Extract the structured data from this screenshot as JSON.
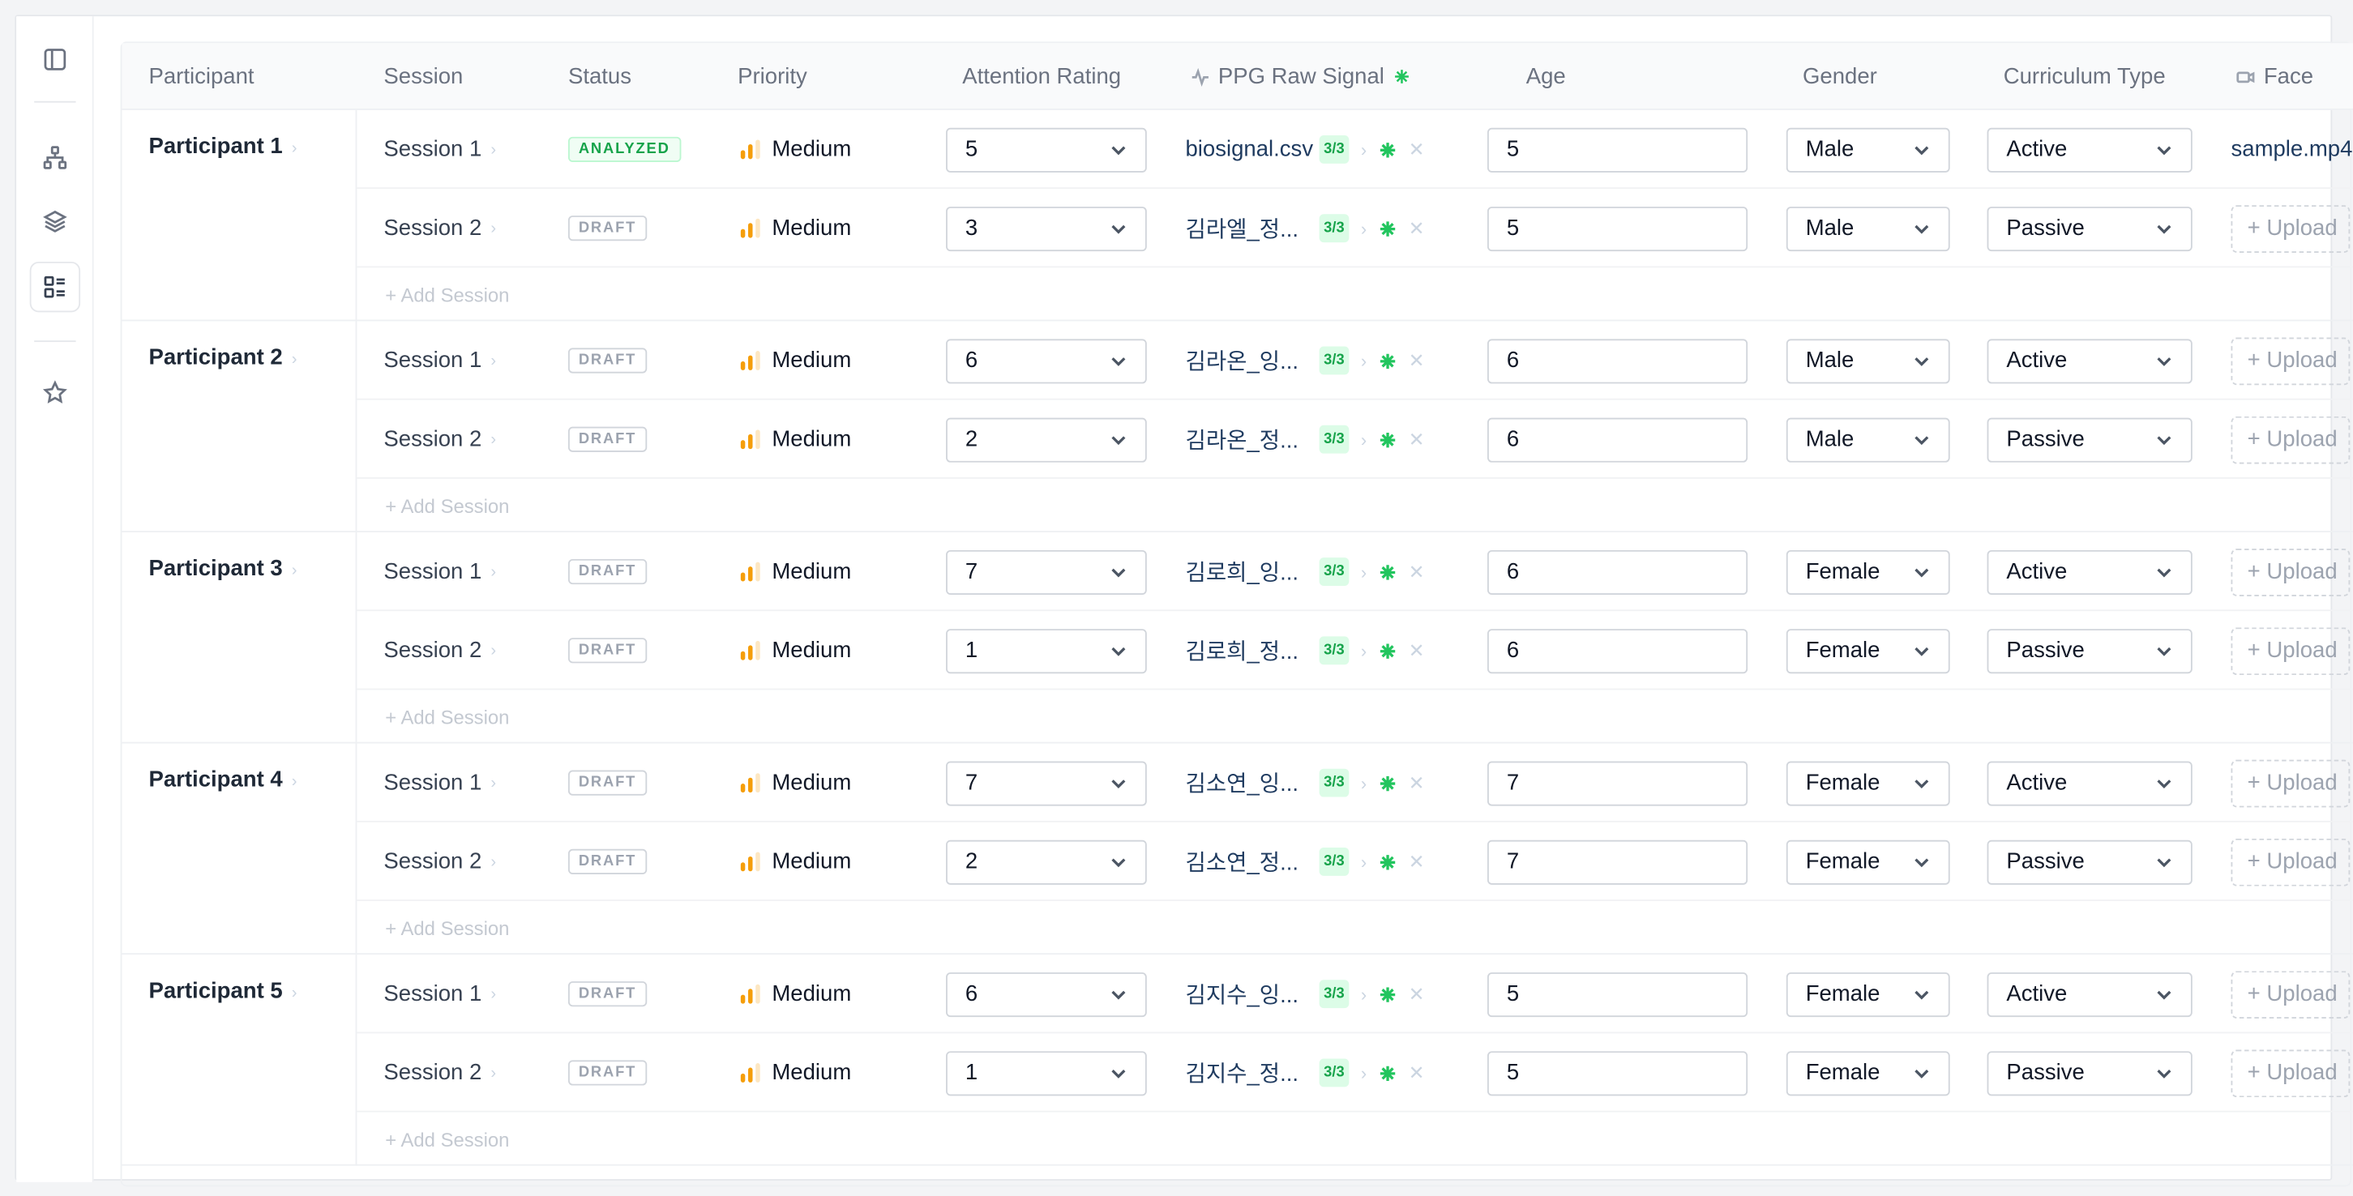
{
  "columns": {
    "participant": "Participant",
    "session": "Session",
    "status": "Status",
    "priority": "Priority",
    "attention": "Attention Rating",
    "ppg": "PPG Raw Signal",
    "age": "Age",
    "gender": "Gender",
    "curriculum": "Curriculum Type",
    "face": "Face"
  },
  "add_session_label": "+ Add Session",
  "upload_label": "+ Upload",
  "participants": [
    {
      "name": "Participant 1",
      "sessions": [
        {
          "session": "Session 1",
          "status": "ANALYZED",
          "priority": "Medium",
          "attention": "5",
          "ppg_file": "biosignal.csv",
          "ppg_count": "3/3",
          "age": "5",
          "gender": "Male",
          "curriculum": "Active",
          "face": "sample.mp4"
        },
        {
          "session": "Session 2",
          "status": "DRAFT",
          "priority": "Medium",
          "attention": "3",
          "ppg_file": "김라엘_정...",
          "ppg_count": "3/3",
          "age": "5",
          "gender": "Male",
          "curriculum": "Passive",
          "face": ""
        }
      ]
    },
    {
      "name": "Participant 2",
      "sessions": [
        {
          "session": "Session 1",
          "status": "DRAFT",
          "priority": "Medium",
          "attention": "6",
          "ppg_file": "김라온_잉...",
          "ppg_count": "3/3",
          "age": "6",
          "gender": "Male",
          "curriculum": "Active",
          "face": ""
        },
        {
          "session": "Session 2",
          "status": "DRAFT",
          "priority": "Medium",
          "attention": "2",
          "ppg_file": "김라온_정...",
          "ppg_count": "3/3",
          "age": "6",
          "gender": "Male",
          "curriculum": "Passive",
          "face": ""
        }
      ]
    },
    {
      "name": "Participant 3",
      "sessions": [
        {
          "session": "Session 1",
          "status": "DRAFT",
          "priority": "Medium",
          "attention": "7",
          "ppg_file": "김로희_잉...",
          "ppg_count": "3/3",
          "age": "6",
          "gender": "Female",
          "curriculum": "Active",
          "face": ""
        },
        {
          "session": "Session 2",
          "status": "DRAFT",
          "priority": "Medium",
          "attention": "1",
          "ppg_file": "김로희_정...",
          "ppg_count": "3/3",
          "age": "6",
          "gender": "Female",
          "curriculum": "Passive",
          "face": ""
        }
      ]
    },
    {
      "name": "Participant 4",
      "sessions": [
        {
          "session": "Session 1",
          "status": "DRAFT",
          "priority": "Medium",
          "attention": "7",
          "ppg_file": "김소연_잉...",
          "ppg_count": "3/3",
          "age": "7",
          "gender": "Female",
          "curriculum": "Active",
          "face": ""
        },
        {
          "session": "Session 2",
          "status": "DRAFT",
          "priority": "Medium",
          "attention": "2",
          "ppg_file": "김소연_정...",
          "ppg_count": "3/3",
          "age": "7",
          "gender": "Female",
          "curriculum": "Passive",
          "face": ""
        }
      ]
    },
    {
      "name": "Participant 5",
      "sessions": [
        {
          "session": "Session 1",
          "status": "DRAFT",
          "priority": "Medium",
          "attention": "6",
          "ppg_file": "김지수_잉...",
          "ppg_count": "3/3",
          "age": "5",
          "gender": "Female",
          "curriculum": "Active",
          "face": ""
        },
        {
          "session": "Session 2",
          "status": "DRAFT",
          "priority": "Medium",
          "attention": "1",
          "ppg_file": "김지수_정...",
          "ppg_count": "3/3",
          "age": "5",
          "gender": "Female",
          "curriculum": "Passive",
          "face": ""
        }
      ]
    }
  ]
}
